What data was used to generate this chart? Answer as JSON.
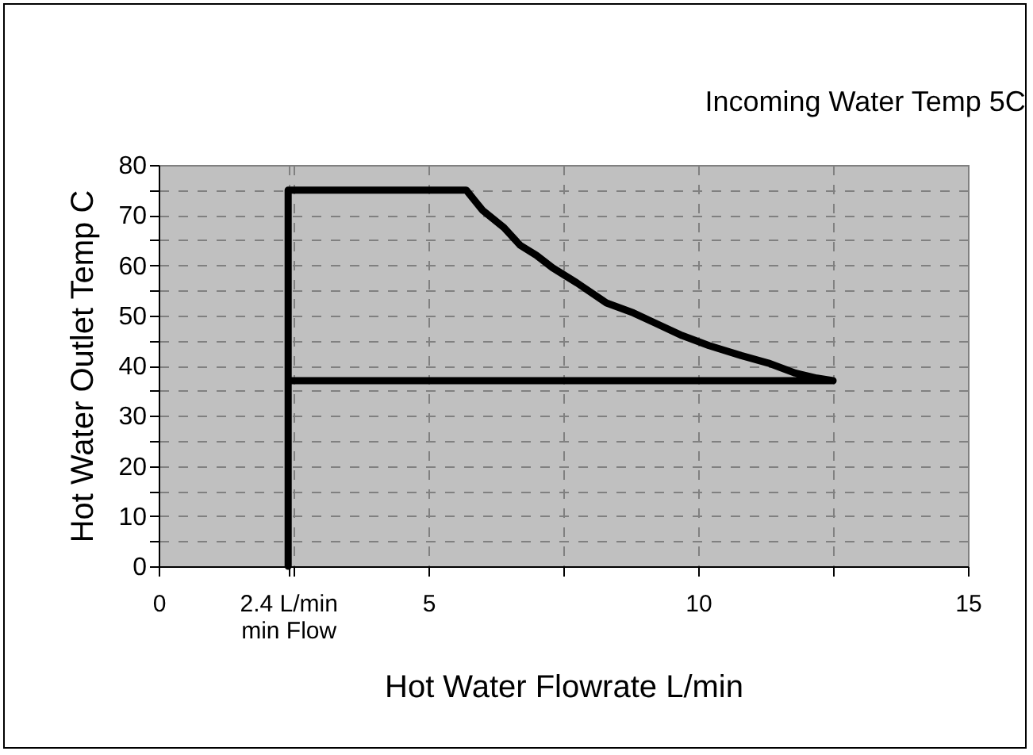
{
  "chart_data": {
    "type": "line",
    "title": "Incoming Water Temp 5C",
    "xlabel": "Hot Water Flowrate L/min",
    "ylabel": "Hot Water Outlet Temp C",
    "series": [
      {
        "color": "#000000",
        "x": [
          2.4,
          2.4,
          5.7,
          6.0,
          6.4,
          6.7,
          7.0,
          7.3,
          7.75,
          8.3,
          8.8,
          9.2,
          9.7,
          10.2,
          10.8,
          11.3,
          11.8,
          12.2,
          12.5,
          2.4
        ],
        "values": [
          0,
          75,
          75,
          71,
          67.5,
          64,
          62,
          59.5,
          56.5,
          52.5,
          50.5,
          48.5,
          46,
          44,
          42,
          40.5,
          38.5,
          37.5,
          37,
          37
        ]
      }
    ],
    "xlim": [
      0,
      15
    ],
    "ylim": [
      0,
      80
    ],
    "xticks": [
      0,
      {
        "value": 2.4,
        "label": "2.4 L/min\nmin Flow"
      },
      {
        "value": 2.5,
        "label": null
      },
      5,
      {
        "value": 7.5,
        "label": null
      },
      10,
      {
        "value": 12.5,
        "label": null
      },
      15
    ],
    "yticks": [
      0,
      {
        "value": 5,
        "label": null
      },
      10,
      {
        "value": 15,
        "label": null
      },
      20,
      {
        "value": 25,
        "label": null
      },
      30,
      {
        "value": 35,
        "label": null
      },
      40,
      {
        "value": 45,
        "label": null
      },
      50,
      {
        "value": 55,
        "label": null
      },
      60,
      {
        "value": 65,
        "label": null
      },
      70,
      {
        "value": 75,
        "label": null
      },
      80
    ],
    "grid": true,
    "marker": "none",
    "line_style": "solid",
    "legend": false
  }
}
